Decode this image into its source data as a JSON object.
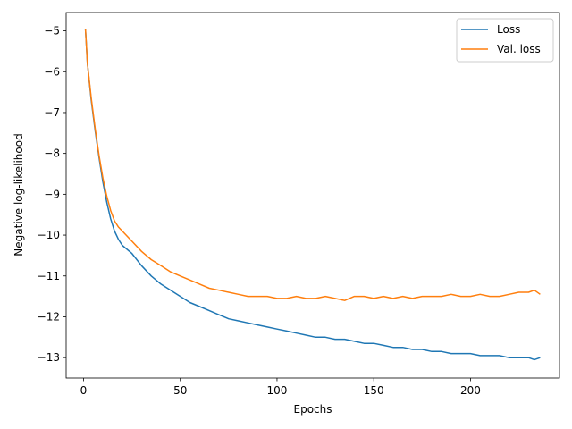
{
  "chart_data": {
    "type": "line",
    "title": "",
    "xlabel": "Epochs",
    "ylabel": "Negative log-likelihood",
    "xlim": [
      -9,
      246
    ],
    "ylim": [
      -13.5,
      -4.55
    ],
    "xticks": [
      0,
      50,
      100,
      150,
      200
    ],
    "yticks": [
      -13,
      -12,
      -11,
      -10,
      -9,
      -8,
      -7,
      -6,
      -5
    ],
    "grid": false,
    "legend_position": "top-right",
    "series": [
      {
        "name": "Loss",
        "color": "#1f77b4",
        "x": [
          1,
          2,
          4,
          6,
          8,
          10,
          12,
          14,
          16,
          18,
          20,
          25,
          30,
          35,
          40,
          45,
          50,
          55,
          60,
          65,
          70,
          75,
          80,
          85,
          90,
          95,
          100,
          105,
          110,
          115,
          120,
          125,
          130,
          135,
          140,
          145,
          150,
          155,
          160,
          165,
          170,
          175,
          180,
          185,
          190,
          195,
          200,
          205,
          210,
          215,
          220,
          225,
          230,
          233,
          236
        ],
        "y": [
          -4.95,
          -5.8,
          -6.7,
          -7.45,
          -8.1,
          -8.7,
          -9.2,
          -9.6,
          -9.9,
          -10.1,
          -10.25,
          -10.45,
          -10.75,
          -11.0,
          -11.2,
          -11.35,
          -11.5,
          -11.65,
          -11.75,
          -11.85,
          -11.95,
          -12.05,
          -12.1,
          -12.15,
          -12.2,
          -12.25,
          -12.3,
          -12.35,
          -12.4,
          -12.45,
          -12.5,
          -12.5,
          -12.55,
          -12.55,
          -12.6,
          -12.65,
          -12.65,
          -12.7,
          -12.75,
          -12.75,
          -12.8,
          -12.8,
          -12.85,
          -12.85,
          -12.9,
          -12.9,
          -12.9,
          -12.95,
          -12.95,
          -12.95,
          -13.0,
          -13.0,
          -13.0,
          -13.05,
          -13.0
        ]
      },
      {
        "name": "Val. loss",
        "color": "#ff7f0e",
        "x": [
          1,
          2,
          4,
          6,
          8,
          10,
          12,
          14,
          16,
          18,
          20,
          25,
          30,
          35,
          40,
          45,
          50,
          55,
          60,
          65,
          70,
          75,
          80,
          85,
          90,
          95,
          100,
          105,
          110,
          115,
          120,
          125,
          130,
          135,
          140,
          145,
          150,
          155,
          160,
          165,
          170,
          175,
          180,
          185,
          190,
          195,
          200,
          205,
          210,
          215,
          220,
          225,
          230,
          233,
          236
        ],
        "y": [
          -4.95,
          -5.8,
          -6.65,
          -7.4,
          -8.05,
          -8.6,
          -9.05,
          -9.4,
          -9.65,
          -9.8,
          -9.9,
          -10.15,
          -10.4,
          -10.6,
          -10.75,
          -10.9,
          -11.0,
          -11.1,
          -11.2,
          -11.3,
          -11.35,
          -11.4,
          -11.45,
          -11.5,
          -11.5,
          -11.5,
          -11.55,
          -11.55,
          -11.5,
          -11.55,
          -11.55,
          -11.5,
          -11.55,
          -11.6,
          -11.5,
          -11.5,
          -11.55,
          -11.5,
          -11.55,
          -11.5,
          -11.55,
          -11.5,
          -11.5,
          -11.5,
          -11.45,
          -11.5,
          -11.5,
          -11.45,
          -11.5,
          -11.5,
          -11.45,
          -11.4,
          -11.4,
          -11.35,
          -11.45
        ]
      }
    ]
  }
}
